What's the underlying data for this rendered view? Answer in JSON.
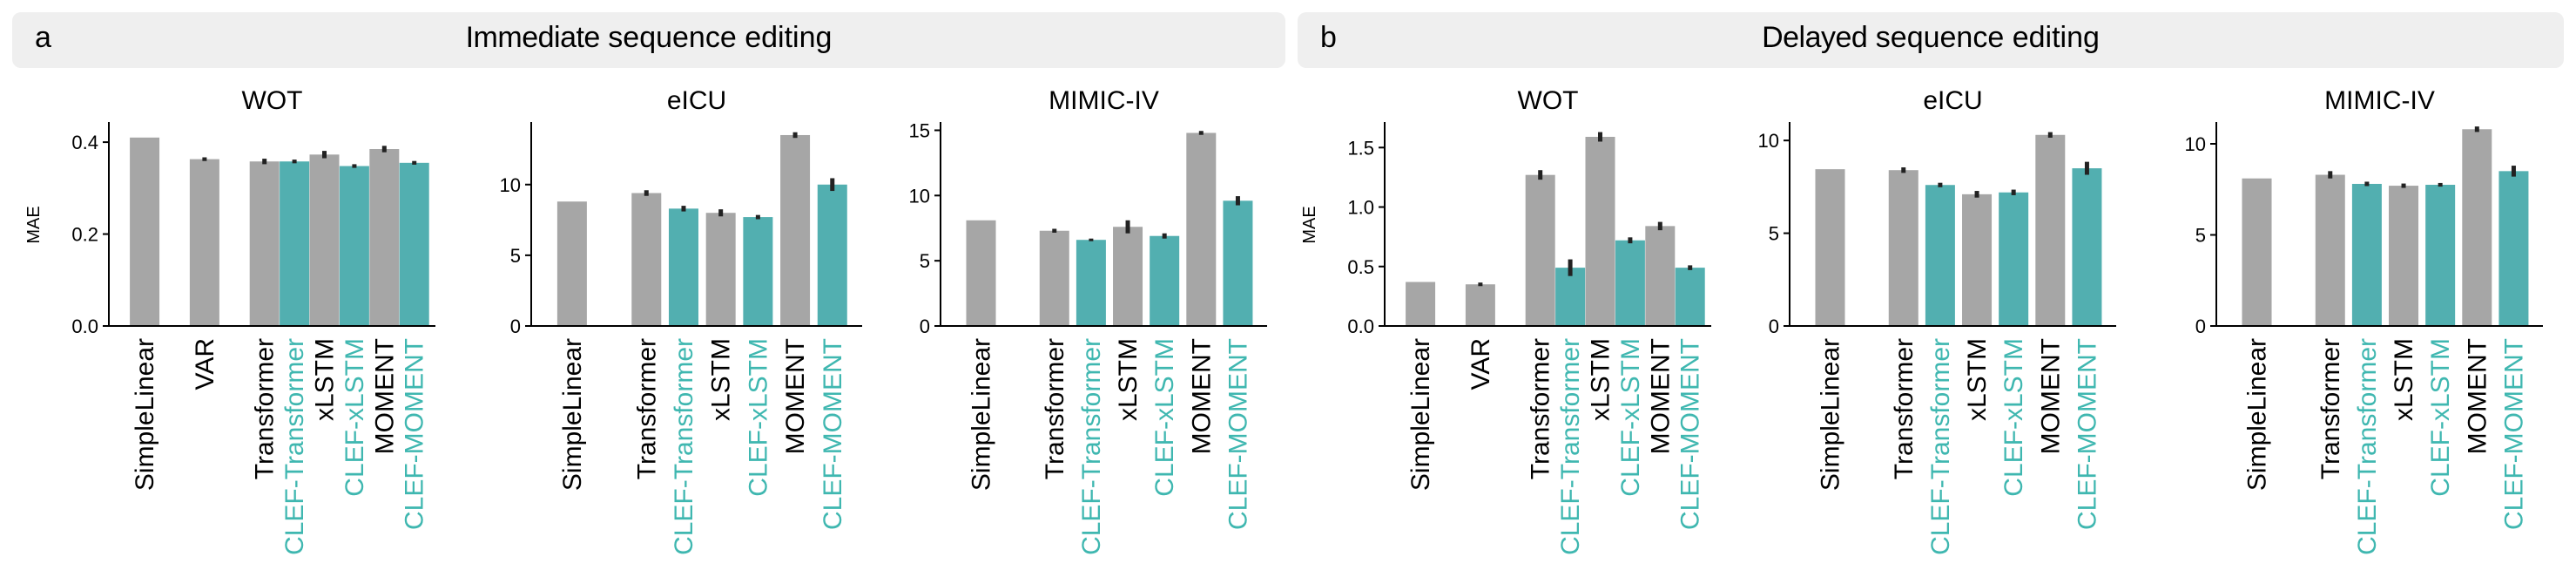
{
  "panels": [
    {
      "letter": "a",
      "title_bold": "Immediate",
      "title_rest": " sequence editing"
    },
    {
      "letter": "b",
      "title_bold": "Delayed",
      "title_rest": " sequence editing"
    }
  ],
  "colors": {
    "baseline": "#a6a6a6",
    "clef": "#52afb0",
    "clef_label": "#3fb7b0",
    "errorbar": "#222222"
  },
  "chart_data": [
    {
      "type": "bar",
      "panel": "a",
      "title": "WOT",
      "ylabel": "MAE",
      "ylim": [
        0,
        0.44
      ],
      "yticks": [
        "0.0",
        "0.2",
        "0.4"
      ],
      "yticks_values": [
        0,
        0.2,
        0.4
      ],
      "categories": [
        "SimpleLinear",
        "VAR",
        "Transformer",
        "CLEF-Transformer",
        "xLSTM",
        "CLEF-xLSTM",
        "MOMENT",
        "CLEF-MOMENT"
      ],
      "values": [
        0.41,
        0.363,
        0.358,
        0.358,
        0.373,
        0.348,
        0.385,
        0.355
      ],
      "errors": [
        0,
        0.004,
        0.006,
        0.004,
        0.008,
        0.004,
        0.007,
        0.004
      ]
    },
    {
      "type": "bar",
      "panel": "a",
      "title": "eICU",
      "ylabel": "",
      "ylim": [
        0,
        14.3
      ],
      "yticks": [
        "0",
        "5",
        "10"
      ],
      "yticks_values": [
        0,
        5,
        10
      ],
      "categories": [
        "SimpleLinear",
        "Transformer",
        "CLEF-Transformer",
        "xLSTM",
        "CLEF-xLSTM",
        "MOMENT",
        "CLEF-MOMENT"
      ],
      "values": [
        8.8,
        9.4,
        8.3,
        8.0,
        7.7,
        13.5,
        10.0
      ],
      "errors": [
        0,
        0.2,
        0.2,
        0.25,
        0.15,
        0.2,
        0.45
      ]
    },
    {
      "type": "bar",
      "panel": "a",
      "title": "MIMIC-IV",
      "ylabel": "",
      "ylim": [
        0,
        15.5
      ],
      "yticks": [
        "0",
        "5",
        "10",
        "15"
      ],
      "yticks_values": [
        0,
        5,
        10,
        15
      ],
      "categories": [
        "SimpleLinear",
        "Transformer",
        "CLEF-Transformer",
        "xLSTM",
        "CLEF-xLSTM",
        "MOMENT",
        "CLEF-MOMENT"
      ],
      "values": [
        8.1,
        7.3,
        6.6,
        7.6,
        6.9,
        14.8,
        9.6
      ],
      "errors": [
        0,
        0.15,
        0.1,
        0.5,
        0.2,
        0.15,
        0.35
      ]
    },
    {
      "type": "bar",
      "panel": "b",
      "title": "WOT",
      "ylabel": "MAE",
      "ylim": [
        0,
        1.7
      ],
      "yticks": [
        "0.0",
        "0.5",
        "1.0",
        "1.5"
      ],
      "yticks_values": [
        0,
        0.5,
        1.0,
        1.5
      ],
      "categories": [
        "SimpleLinear",
        "VAR",
        "Transformer",
        "CLEF-Transformer",
        "xLSTM",
        "CLEF-xLSTM",
        "MOMENT",
        "CLEF-MOMENT"
      ],
      "values": [
        0.37,
        0.35,
        1.27,
        0.49,
        1.59,
        0.72,
        0.84,
        0.49
      ],
      "errors": [
        0,
        0.015,
        0.04,
        0.07,
        0.04,
        0.025,
        0.035,
        0.02
      ]
    },
    {
      "type": "bar",
      "panel": "b",
      "title": "eICU",
      "ylabel": "",
      "ylim": [
        0,
        10.9
      ],
      "yticks": [
        "0",
        "5",
        "10"
      ],
      "yticks_values": [
        0,
        5,
        10
      ],
      "categories": [
        "SimpleLinear",
        "Transformer",
        "CLEF-Transformer",
        "xLSTM",
        "CLEF-xLSTM",
        "MOMENT",
        "CLEF-MOMENT"
      ],
      "values": [
        8.45,
        8.4,
        7.6,
        7.1,
        7.2,
        10.3,
        8.5
      ],
      "errors": [
        0,
        0.15,
        0.12,
        0.18,
        0.15,
        0.15,
        0.35
      ]
    },
    {
      "type": "bar",
      "panel": "b",
      "title": "MIMIC-IV",
      "ylabel": "",
      "ylim": [
        0,
        11.1
      ],
      "yticks": [
        "0",
        "5",
        "10"
      ],
      "yticks_values": [
        0,
        5,
        10
      ],
      "categories": [
        "SimpleLinear",
        "Transformer",
        "CLEF-Transformer",
        "xLSTM",
        "CLEF-xLSTM",
        "MOMENT",
        "CLEF-MOMENT"
      ],
      "values": [
        8.1,
        8.3,
        7.8,
        7.7,
        7.75,
        10.8,
        8.5
      ],
      "errors": [
        0,
        0.2,
        0.12,
        0.12,
        0.1,
        0.15,
        0.3
      ]
    }
  ]
}
